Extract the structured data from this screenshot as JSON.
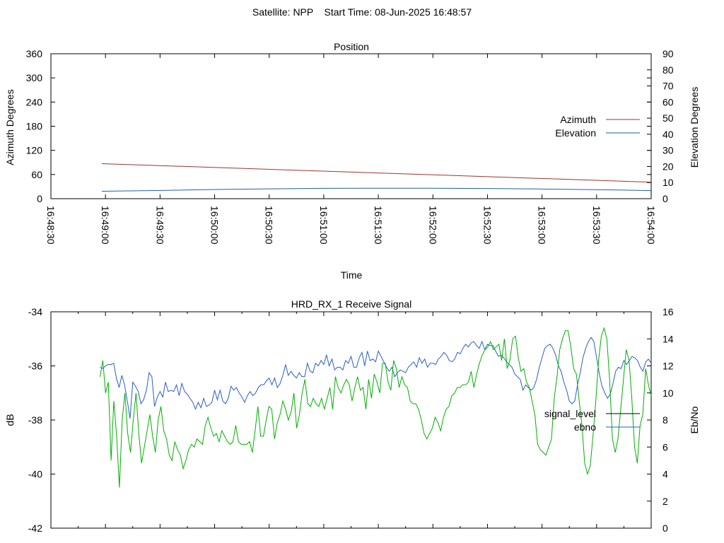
{
  "header": {
    "satellite": "Satellite: NPP",
    "start_time": "Start Time: 08-Jun-2025 16:48:57"
  },
  "colors": {
    "azimuth": "#a0332b",
    "elevation": "#1f5fa8",
    "signal_level": "#00b000",
    "ebno": "#2a5ccc",
    "legend_signal": "#000000"
  },
  "chart_data": [
    {
      "type": "line",
      "title": "Position",
      "xlabel": "Time",
      "ylabel": "Azimuth Degrees",
      "y2label": "Elevation Degrees",
      "xticks": [
        "16:48:30",
        "16:49:00",
        "16:49:30",
        "16:50:00",
        "16:50:30",
        "16:51:00",
        "16:51:30",
        "16:52:00",
        "16:52:30",
        "16:53:00",
        "16:53:30",
        "16:54:00"
      ],
      "yticks": [
        0,
        60,
        120,
        180,
        240,
        300,
        360
      ],
      "y2ticks": [
        0,
        10,
        20,
        30,
        40,
        50,
        60,
        70,
        80,
        90
      ],
      "ylim": [
        0,
        360
      ],
      "y2lim": [
        0,
        90
      ],
      "legend": "right",
      "series": [
        {
          "name": "Azimuth",
          "axis": "y",
          "x": [
            "16:48:58",
            "16:54:00"
          ],
          "values": [
            87,
            41
          ]
        },
        {
          "name": "Elevation",
          "axis": "y2",
          "x": [
            "16:48:58",
            "16:49:30",
            "16:50:00",
            "16:50:30",
            "16:51:00",
            "16:51:30",
            "16:52:00",
            "16:52:30",
            "16:53:00",
            "16:53:30",
            "16:54:00"
          ],
          "values": [
            4.6,
            5.1,
            5.7,
            6.1,
            6.4,
            6.5,
            6.5,
            6.3,
            6.0,
            5.6,
            5.0
          ]
        }
      ]
    },
    {
      "type": "line",
      "title": "HRD_RX_1 Receive Signal",
      "ylabel": "dB",
      "y2label": "Eb/No",
      "yticks": [
        -42,
        -40,
        -38,
        -36,
        -34
      ],
      "y2ticks": [
        0,
        2,
        4,
        6,
        8,
        10,
        12,
        14,
        16
      ],
      "ylim": [
        -42,
        -34
      ],
      "y2lim": [
        0,
        16
      ],
      "legend": "right",
      "series": [
        {
          "name": "signal_level",
          "axis": "y",
          "x_range": [
            "16:48:57",
            "16:54:00"
          ],
          "values": [
            -36.4,
            -35.8,
            -37.0,
            -36.6,
            -39.5,
            -37.3,
            -38.6,
            -40.5,
            -38.0,
            -37.0,
            -38.5,
            -39.2,
            -38.0,
            -37.0,
            -38.5,
            -39.6,
            -39.0,
            -38.4,
            -37.8,
            -38.6,
            -39.2,
            -38.0,
            -37.5,
            -38.4,
            -38.7,
            -39.3,
            -39.5,
            -38.8,
            -39.1,
            -39.3,
            -39.8,
            -39.5,
            -39.1,
            -38.9,
            -39.0,
            -38.7,
            -38.8,
            -38.9,
            -38.2,
            -37.9,
            -38.3,
            -38.6,
            -38.5,
            -38.8,
            -38.4,
            -38.6,
            -38.8,
            -38.9,
            -38.8,
            -38.2,
            -38.8,
            -38.9,
            -38.9,
            -38.9,
            -38.8,
            -39.2,
            -38.4,
            -37.5,
            -38.6,
            -38.6,
            -38.0,
            -37.5,
            -37.6,
            -38.7,
            -38.1,
            -37.8,
            -37.3,
            -37.6,
            -38.0,
            -37.7,
            -37.0,
            -38.3,
            -37.8,
            -37.0,
            -36.5,
            -37.4,
            -37.5,
            -37.2,
            -37.4,
            -37.5,
            -37.2,
            -37.6,
            -37.2,
            -36.8,
            -37.6,
            -36.4,
            -36.8,
            -37.0,
            -36.7,
            -36.5,
            -36.7,
            -37.3,
            -36.8,
            -36.4,
            -36.9,
            -36.8,
            -37.6,
            -36.5,
            -37.2,
            -36.3,
            -36.6,
            -37.0,
            -35.9,
            -35.9,
            -36.6,
            -36.9,
            -35.8,
            -36.1,
            -36.8,
            -36.4,
            -36.7,
            -36.8,
            -37.3,
            -37.4,
            -37.4,
            -37.6,
            -38.0,
            -38.5,
            -38.7,
            -38.5,
            -38.3,
            -37.9,
            -38.1,
            -38.4,
            -37.9,
            -37.6,
            -37.5,
            -37.1,
            -37.0,
            -36.8,
            -36.8,
            -36.7,
            -36.7,
            -36.6,
            -36.2,
            -36.8,
            -36.3,
            -35.9,
            -35.6,
            -35.4,
            -35.3,
            -35.1,
            -35.4,
            -35.3,
            -35.2,
            -35.8,
            -35.0,
            -36.1,
            -35.8,
            -35.0,
            -34.9,
            -35.7,
            -36.2,
            -36.1,
            -36.6,
            -36.8,
            -37.3,
            -37.8,
            -38.9,
            -39.1,
            -39.2,
            -39.3,
            -39.0,
            -38.7,
            -37.2,
            -36.4,
            -35.4,
            -35.0,
            -34.7,
            -34.7,
            -35.3,
            -36.1,
            -36.3,
            -37.3,
            -38.2,
            -39.6,
            -40.0,
            -39.7,
            -38.6,
            -37.3,
            -35.8,
            -34.9,
            -34.6,
            -35.0,
            -36.5,
            -38.7,
            -39.2,
            -38.7,
            -37.6,
            -36.5,
            -35.4,
            -35.8,
            -37.2,
            -39.0,
            -39.6,
            -38.2,
            -37.8,
            -36.1,
            -36.7,
            -37.1
          ]
        },
        {
          "name": "ebno",
          "axis": "y2",
          "x_range": [
            "16:48:57",
            "16:54:00"
          ],
          "values": [
            11.9,
            11.8,
            12.0,
            12.1,
            12.1,
            12.2,
            11.1,
            10.4,
            11.3,
            10.6,
            9.4,
            8.1,
            10.8,
            10.5,
            10.1,
            9.2,
            9.5,
            10.2,
            11.5,
            11.2,
            9.0,
            9.7,
            10.1,
            9.7,
            10.8,
            10.1,
            10.2,
            10.1,
            10.6,
            9.8,
            10.7,
            10.1,
            9.9,
            9.6,
            9.3,
            8.8,
            9.3,
            8.9,
            9.6,
            9.0,
            9.1,
            9.3,
            10.2,
            9.5,
            10.2,
            9.4,
            9.2,
            9.6,
            10.5,
            10.2,
            10.4,
            10.0,
            9.7,
            9.3,
            9.8,
            10.1,
            9.8,
            10.0,
            10.4,
            10.6,
            10.6,
            10.9,
            11.1,
            10.6,
            11.1,
            10.4,
            10.7,
            11.3,
            12.1,
            11.3,
            11.6,
            11.3,
            11.1,
            11.5,
            11.2,
            11.2,
            12.2,
            11.6,
            11.5,
            12.2,
            12.0,
            12.4,
            12.1,
            12.8,
            12.0,
            12.5,
            11.7,
            11.9,
            11.9,
            11.7,
            12.4,
            12.2,
            12.7,
            11.9,
            11.9,
            12.6,
            13.0,
            12.0,
            13.1,
            12.4,
            12.5,
            12.3,
            13.1,
            12.7,
            12.3,
            11.9,
            11.6,
            11.9,
            11.2,
            11.5,
            11.7,
            11.6,
            11.5,
            11.9,
            12.1,
            12.3,
            11.9,
            12.6,
            12.2,
            12.5,
            11.9,
            12.2,
            12.2,
            12.1,
            12.5,
            12.7,
            13.0,
            12.8,
            12.4,
            12.3,
            12.5,
            13.0,
            12.9,
            13.3,
            13.6,
            13.4,
            13.7,
            13.8,
            13.5,
            13.3,
            13.8,
            13.2,
            13.6,
            13.5,
            13.5,
            13.1,
            12.7,
            12.8,
            12.6,
            12.3,
            12.1,
            11.9,
            11.4,
            11.2,
            11.0,
            10.2,
            10.6,
            10.4,
            10.2,
            10.4,
            11.0,
            11.9,
            12.6,
            13.3,
            13.5,
            13.6,
            13.3,
            12.8,
            12.0,
            11.6,
            10.8,
            10.2,
            9.4,
            9.2,
            9.4,
            10.6,
            11.5,
            12.6,
            13.3,
            13.8,
            14.1,
            13.8,
            12.6,
            11.4,
            10.5,
            10.0,
            9.6,
            9.9,
            10.7,
            11.6,
            11.9,
            11.8,
            12.4,
            12.1,
            12.4,
            12.7,
            12.6,
            12.4,
            11.9,
            11.6,
            12.3,
            12.5,
            12.2
          ]
        }
      ]
    }
  ]
}
